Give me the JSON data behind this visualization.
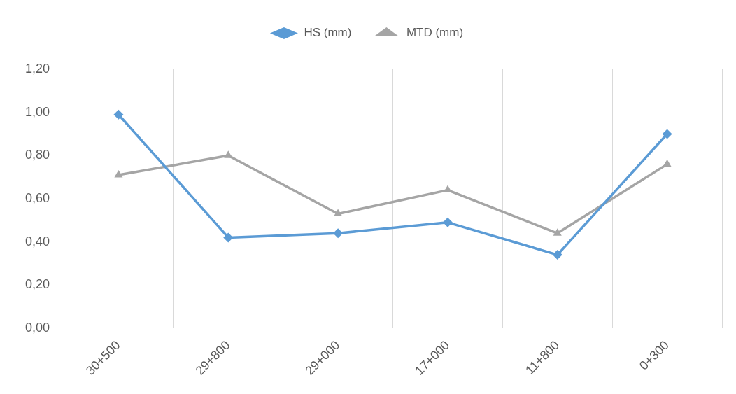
{
  "chart_data": {
    "type": "line",
    "categories": [
      "30+500",
      "29+800",
      "29+000",
      "17+000",
      "11+800",
      "0+300"
    ],
    "series": [
      {
        "name": "HS (mm)",
        "color": "#5b9bd5",
        "marker": "diamond",
        "values": [
          0.99,
          0.42,
          0.44,
          0.49,
          0.34,
          0.9
        ]
      },
      {
        "name": "MTD (mm)",
        "color": "#a5a5a5",
        "marker": "triangle",
        "values": [
          0.71,
          0.8,
          0.53,
          0.64,
          0.44,
          0.76
        ]
      }
    ],
    "ylim": [
      0,
      1.2
    ],
    "yticks": [
      {
        "value": 0,
        "label": "0,00"
      },
      {
        "value": 0.2,
        "label": "0,20"
      },
      {
        "value": 0.4,
        "label": "0,40"
      },
      {
        "value": 0.6,
        "label": "0,60"
      },
      {
        "value": 0.8,
        "label": "0,80"
      },
      {
        "value": 1.0,
        "label": "1,00"
      },
      {
        "value": 1.2,
        "label": "1,20"
      }
    ],
    "grid": "x",
    "legend": "top",
    "line_style": "solid"
  }
}
